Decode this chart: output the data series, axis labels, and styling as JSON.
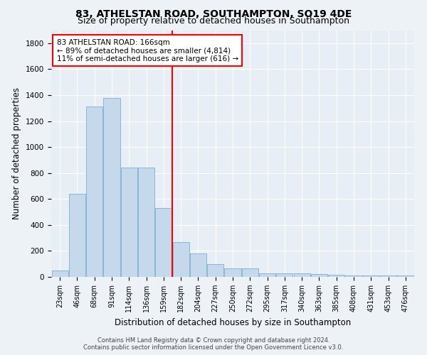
{
  "title1": "83, ATHELSTAN ROAD, SOUTHAMPTON, SO19 4DE",
  "title2": "Size of property relative to detached houses in Southampton",
  "xlabel": "Distribution of detached houses by size in Southampton",
  "ylabel": "Number of detached properties",
  "categories": [
    "23sqm",
    "46sqm",
    "68sqm",
    "91sqm",
    "114sqm",
    "136sqm",
    "159sqm",
    "182sqm",
    "204sqm",
    "227sqm",
    "250sqm",
    "272sqm",
    "295sqm",
    "317sqm",
    "340sqm",
    "363sqm",
    "385sqm",
    "408sqm",
    "431sqm",
    "453sqm",
    "476sqm"
  ],
  "values": [
    50,
    640,
    1310,
    1380,
    840,
    840,
    530,
    270,
    180,
    100,
    65,
    65,
    30,
    30,
    30,
    20,
    15,
    10,
    10,
    10,
    10
  ],
  "bar_color": "#c6d9ec",
  "bar_edge_color": "#7aafd4",
  "red_line_x": 6.5,
  "ylim": [
    0,
    1900
  ],
  "yticks": [
    0,
    200,
    400,
    600,
    800,
    1000,
    1200,
    1400,
    1600,
    1800
  ],
  "annotation_title": "83 ATHELSTAN ROAD: 166sqm",
  "annotation_line1": "← 89% of detached houses are smaller (4,814)",
  "annotation_line2": "11% of semi-detached houses are larger (616) →",
  "footer1": "Contains HM Land Registry data © Crown copyright and database right 2024.",
  "footer2": "Contains public sector information licensed under the Open Government Licence v3.0.",
  "bg_color": "#edf2f7",
  "plot_bg_color": "#e8eef5",
  "grid_color": "#ffffff",
  "title1_fontsize": 10,
  "title2_fontsize": 9,
  "xlabel_fontsize": 8.5,
  "ylabel_fontsize": 8.5,
  "annot_fontsize": 7.5,
  "tick_fontsize": 7,
  "ytick_fontsize": 7.5
}
